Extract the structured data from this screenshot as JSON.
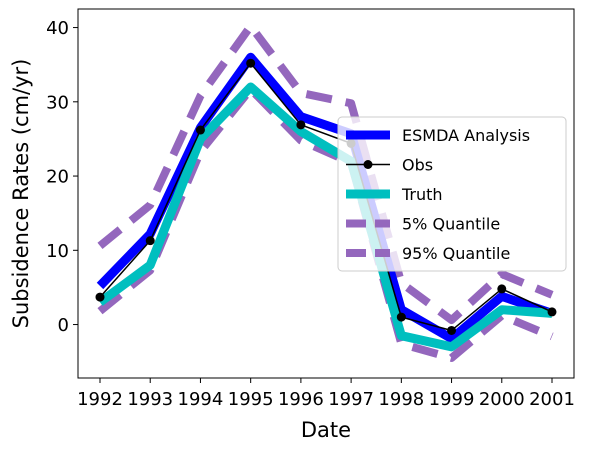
{
  "chart_data": {
    "type": "line",
    "xlabel": "Date",
    "ylabel": "Subsidence Rates (cm/yr)",
    "categories": [
      "1992",
      "1993",
      "1994",
      "1995",
      "1996",
      "1997",
      "1998",
      "1999",
      "2000",
      "2001"
    ],
    "ylim": [
      -7.2,
      42.5
    ],
    "yticks": [
      0,
      10,
      20,
      30,
      40
    ],
    "grid": false,
    "legend_position": "center-right",
    "series": [
      {
        "name": "ESMDA Analysis",
        "color": "#0000ff",
        "style": "thick-solid",
        "values": [
          5.2,
          12.2,
          26.5,
          36.0,
          28.0,
          25.7,
          2.0,
          -1.9,
          3.8,
          1.5
        ]
      },
      {
        "name": "Obs",
        "color": "#000000",
        "style": "line-marker",
        "values": [
          3.7,
          11.3,
          26.2,
          35.2,
          26.9,
          24.4,
          1.0,
          -0.8,
          4.8,
          1.7
        ]
      },
      {
        "name": "Truth",
        "color": "#00bfbf",
        "style": "thick-solid",
        "values": [
          3.0,
          8.0,
          25.0,
          32.0,
          26.0,
          22.0,
          -1.5,
          -3.0,
          2.0,
          1.5
        ]
      },
      {
        "name": "5% Quantile",
        "color": "#9467bd",
        "style": "thick-dashed",
        "values": [
          1.8,
          7.3,
          23.3,
          31.7,
          24.8,
          21.8,
          -2.6,
          -4.5,
          1.2,
          -1.6
        ]
      },
      {
        "name": "95% Quantile",
        "color": "#9467bd",
        "style": "thick-dashed",
        "values": [
          10.6,
          16.1,
          30.8,
          40.2,
          31.2,
          29.8,
          5.6,
          0.6,
          6.8,
          4.0
        ]
      }
    ]
  }
}
